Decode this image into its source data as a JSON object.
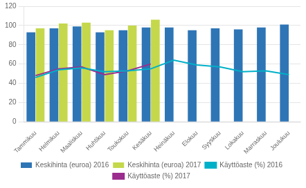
{
  "chart_data": {
    "type": "bar",
    "categories": [
      "Tammikuu",
      "Helmikuu",
      "Maaliskuu",
      "Huhtikuu",
      "Toukokuu",
      "Kesäkuu",
      "Heinäkuu",
      "Elokuu",
      "Syyskuu",
      "Lokakuu",
      "Marraskuu",
      "Joulukuu"
    ],
    "series": [
      {
        "name": "Keskihinta (euroa) 2016",
        "type": "bar",
        "color": "#2e75b6",
        "values": [
          93,
          97,
          99,
          93,
          95,
          98,
          98,
          95,
          97,
          96,
          98,
          101
        ]
      },
      {
        "name": "Keskihinta (euroa) 2017",
        "type": "bar",
        "color": "#c5d84b",
        "values": [
          97,
          102,
          103,
          95,
          100,
          106,
          null,
          null,
          null,
          null,
          null,
          null
        ]
      },
      {
        "name": "Käyttöaste (%) 2016",
        "type": "line",
        "color": "#00b0c8",
        "values": [
          46,
          54,
          56,
          52,
          53,
          55,
          64,
          59,
          57,
          52,
          53,
          49
        ]
      },
      {
        "name": "Käyttöaste (%) 2017",
        "type": "line",
        "color": "#9b2d8e",
        "values": [
          48,
          55,
          57,
          49,
          53,
          60,
          null,
          null,
          null,
          null,
          null,
          null
        ]
      }
    ],
    "ylim": [
      0,
      120
    ],
    "yticks": [
      0,
      20,
      40,
      60,
      80,
      100,
      120
    ],
    "grid": true,
    "legend": "bottom"
  }
}
